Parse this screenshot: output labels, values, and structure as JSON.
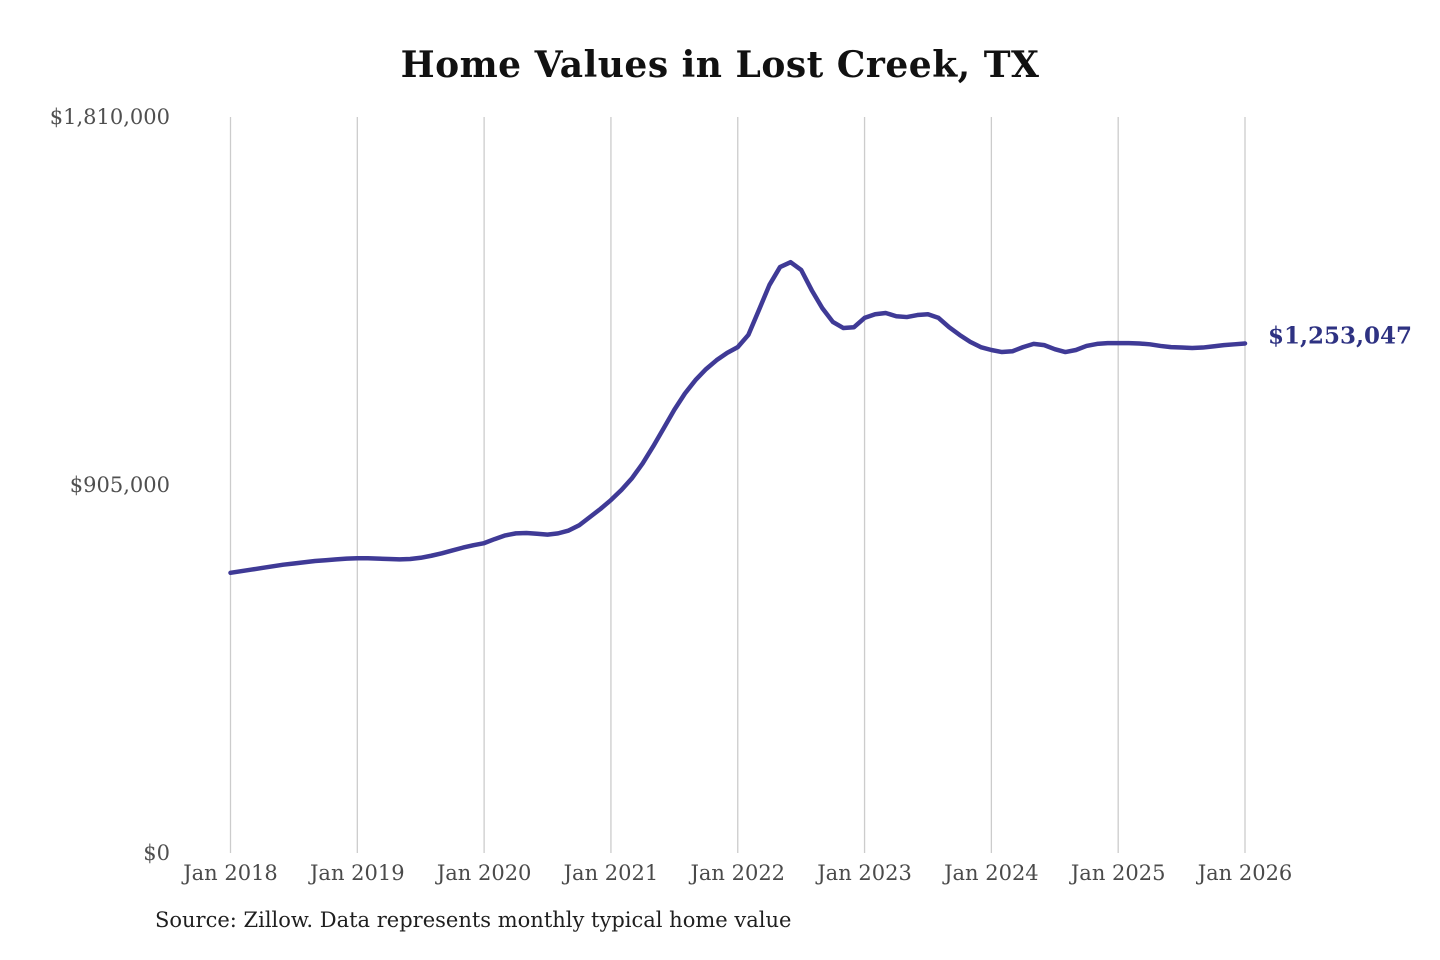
{
  "title": "Home Values in Lost Creek, TX",
  "source_note": "Source: Zillow. Data represents monthly typical home value",
  "theme": {
    "line_color": "#3f3a96",
    "end_label_color": "#2e3282",
    "grid_color": "#cccccc",
    "title_color": "#111111",
    "tick_color": "#4f4f4f",
    "source_color": "#1f1f1f",
    "background": "#ffffff"
  },
  "chart_data": {
    "type": "line",
    "title": "Home Values in Lost Creek, TX",
    "xlabel": "",
    "ylabel": "",
    "unit": "USD",
    "ylim": [
      0,
      1810000
    ],
    "y_ticks": [
      1810000,
      905000,
      0
    ],
    "y_tick_labels": [
      "$1,810,000",
      "$905,000",
      "$0"
    ],
    "x_tick_labels": [
      "Jan 2018",
      "Jan 2019",
      "Jan 2020",
      "Jan 2021",
      "Jan 2022",
      "Jan 2023",
      "Jan 2024",
      "Jan 2025",
      "Jan 2026"
    ],
    "grid": "vertical-only",
    "legend": "none",
    "last_value": 1253047,
    "last_value_label": "$1,253,047",
    "series": [
      {
        "name": "Monthly typical home value",
        "start": "Jan 2018",
        "end": "Jan 2026",
        "frequency": "monthly",
        "values": [
          689000,
          693000,
          697000,
          701000,
          705000,
          709000,
          712000,
          715000,
          718000,
          720000,
          722000,
          724000,
          725000,
          725000,
          724000,
          723000,
          722000,
          723000,
          726000,
          731000,
          737000,
          744000,
          751000,
          757000,
          762000,
          772000,
          781000,
          786000,
          787000,
          785000,
          783000,
          786000,
          793000,
          806000,
          826000,
          846000,
          868000,
          893000,
          922000,
          958000,
          1000000,
          1045000,
          1090000,
          1130000,
          1163000,
          1190000,
          1212000,
          1230000,
          1244000,
          1274000,
          1335000,
          1397000,
          1441000,
          1453000,
          1434000,
          1384000,
          1340000,
          1306000,
          1291000,
          1293000,
          1316000,
          1325000,
          1328000,
          1320000,
          1318000,
          1323000,
          1325000,
          1316000,
          1293000,
          1274000,
          1257000,
          1244000,
          1237000,
          1232000,
          1234000,
          1244000,
          1252000,
          1249000,
          1239000,
          1232000,
          1237000,
          1247000,
          1252000,
          1254000,
          1254000,
          1254000,
          1253000,
          1251000,
          1247000,
          1244000,
          1243000,
          1242000,
          1243000,
          1246000,
          1249000,
          1251000,
          1253047
        ]
      }
    ]
  }
}
